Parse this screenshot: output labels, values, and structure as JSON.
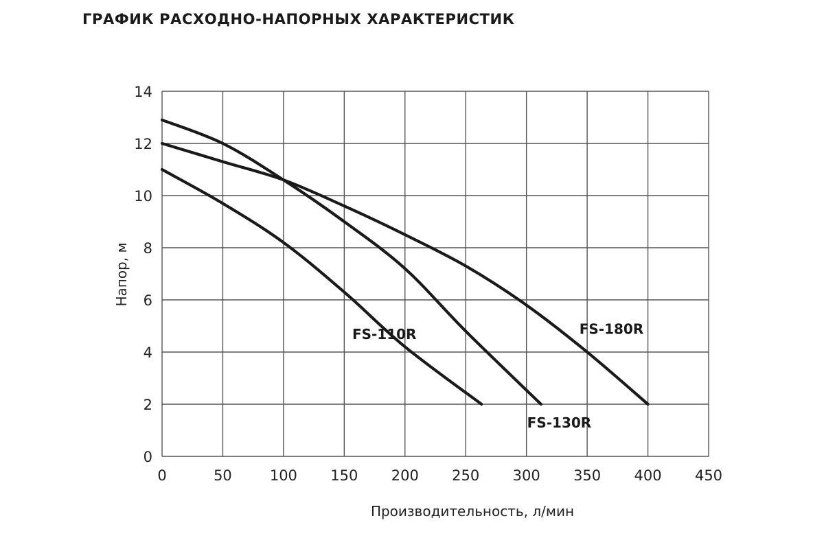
{
  "chart_data": {
    "type": "line",
    "title": "ГРАФИК РАСХОДНО-НАПОРНЫХ ХАРАКТЕРИСТИК",
    "xlabel": "Производительность, л/мин",
    "ylabel": "Напор, м",
    "xlim": [
      0,
      450
    ],
    "ylim": [
      0,
      14
    ],
    "xticks": [
      0,
      50,
      100,
      150,
      200,
      250,
      300,
      350,
      400,
      450
    ],
    "yticks": [
      0,
      2,
      4,
      6,
      8,
      10,
      12,
      14
    ],
    "grid": true,
    "line_color": "#1a1a1a",
    "grid_color": "#555555",
    "series": [
      {
        "name": "FS-110R",
        "x": [
          0,
          50,
          100,
          150,
          200,
          263
        ],
        "y": [
          11,
          9.7,
          8.2,
          6.3,
          4.2,
          2
        ]
      },
      {
        "name": "FS-130R",
        "x": [
          0,
          50,
          100,
          150,
          200,
          250,
          312
        ],
        "y": [
          12.9,
          12,
          10.6,
          9,
          7.2,
          4.8,
          2
        ]
      },
      {
        "name": "FS-180R",
        "x": [
          0,
          50,
          100,
          150,
          200,
          250,
          300,
          350,
          400
        ],
        "y": [
          12,
          11.3,
          10.6,
          9.6,
          8.5,
          7.3,
          5.8,
          4,
          2
        ]
      }
    ],
    "series_labels": [
      {
        "text": "FS-110R",
        "x": 183,
        "y": 4.5
      },
      {
        "text": "FS-130R",
        "x": 327,
        "y": 1.1
      },
      {
        "text": "FS-180R",
        "x": 370,
        "y": 4.7
      }
    ]
  }
}
